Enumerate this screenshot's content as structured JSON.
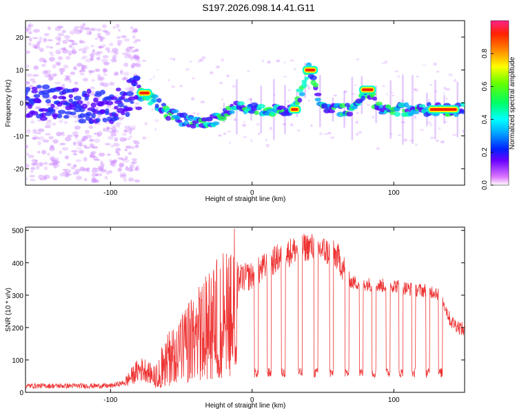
{
  "title": "S197.2026.098.14.41.G11",
  "colors": {
    "snr_line": "#ee3333",
    "colorbar": [
      "#ffffff",
      "#dd77ff",
      "#6a00ff",
      "#0022ff",
      "#00aaff",
      "#00ffff",
      "#00ff66",
      "#66ff00",
      "#ffff00",
      "#ff8800",
      "#ff2200",
      "#ff2288"
    ]
  },
  "chart_data": [
    {
      "type": "heatmap",
      "name": "spectrogram",
      "xlabel": "Height of straight line (km)",
      "ylabel": "Frequency (Hz)",
      "xlim": [
        -160,
        150
      ],
      "ylim": [
        -25,
        25
      ],
      "xticks": [
        -100,
        0,
        100
      ],
      "yticks": [
        -20,
        -10,
        0,
        10,
        20
      ],
      "xtick_labels": [
        "-100",
        "0",
        "100"
      ],
      "ytick_labels": [
        "-20",
        "-10",
        "0",
        "10",
        "20"
      ],
      "colorbar": {
        "label": "Normalized spectral amplitude",
        "range": [
          0,
          1
        ],
        "ticks": [
          0.0,
          0.2,
          0.4,
          0.6,
          0.8
        ],
        "tick_labels": [
          "0.0",
          "0.2",
          "0.4",
          "0.6",
          "0.8"
        ]
      },
      "ridge": {
        "x": [
          -160,
          -140,
          -120,
          -100,
          -90,
          -80,
          -70,
          -60,
          -50,
          -40,
          -30,
          -20,
          -10,
          0,
          10,
          20,
          30,
          40,
          50,
          60,
          70,
          80,
          90,
          100,
          110,
          120,
          130,
          145
        ],
        "freq": [
          0,
          0,
          -1,
          -1,
          1,
          3,
          1,
          -3,
          -5,
          -6,
          -6,
          -3,
          -1,
          -2,
          -2,
          -2,
          -2,
          10,
          -2,
          -2,
          -2,
          4,
          -2,
          -2,
          -2,
          -2,
          -2,
          -2
        ]
      },
      "segments": [
        {
          "x0": 37,
          "x1": 45,
          "freq": 10
        },
        {
          "x0": 77,
          "x1": 86,
          "freq": 4
        },
        {
          "x0": 125,
          "x1": 145,
          "freq": -2
        },
        {
          "x0": 27,
          "x1": 33,
          "freq": -2
        },
        {
          "x0": -80,
          "x1": -72,
          "freq": 3
        }
      ]
    },
    {
      "type": "line",
      "name": "snr",
      "xlabel": "Height of straight line (km)",
      "ylabel": "SNR (10 * v/v)",
      "xlim": [
        -160,
        150
      ],
      "ylim": [
        0,
        510
      ],
      "xticks": [
        -100,
        0,
        100
      ],
      "yticks": [
        0,
        100,
        200,
        300,
        400,
        500
      ],
      "xtick_labels": [
        "-100",
        "0",
        "100"
      ],
      "ytick_labels": [
        "0",
        "100",
        "200",
        "300",
        "400",
        "500"
      ],
      "envelope": {
        "x": [
          -160,
          -100,
          -90,
          -80,
          -75,
          -70,
          -60,
          -50,
          -40,
          -30,
          -20,
          -15,
          -10,
          0,
          10,
          20,
          30,
          40,
          50,
          60,
          65,
          70,
          80,
          90,
          100,
          110,
          120,
          130,
          135,
          140,
          150
        ],
        "y": [
          20,
          20,
          30,
          70,
          70,
          50,
          120,
          160,
          200,
          250,
          290,
          330,
          350,
          360,
          390,
          420,
          440,
          450,
          440,
          420,
          380,
          340,
          335,
          330,
          330,
          320,
          315,
          310,
          280,
          220,
          190
        ]
      },
      "dips": [
        3,
        12,
        22,
        34,
        45,
        56,
        67,
        77,
        86,
        96,
        105,
        114,
        124,
        133
      ],
      "dip_level": 60
    }
  ]
}
